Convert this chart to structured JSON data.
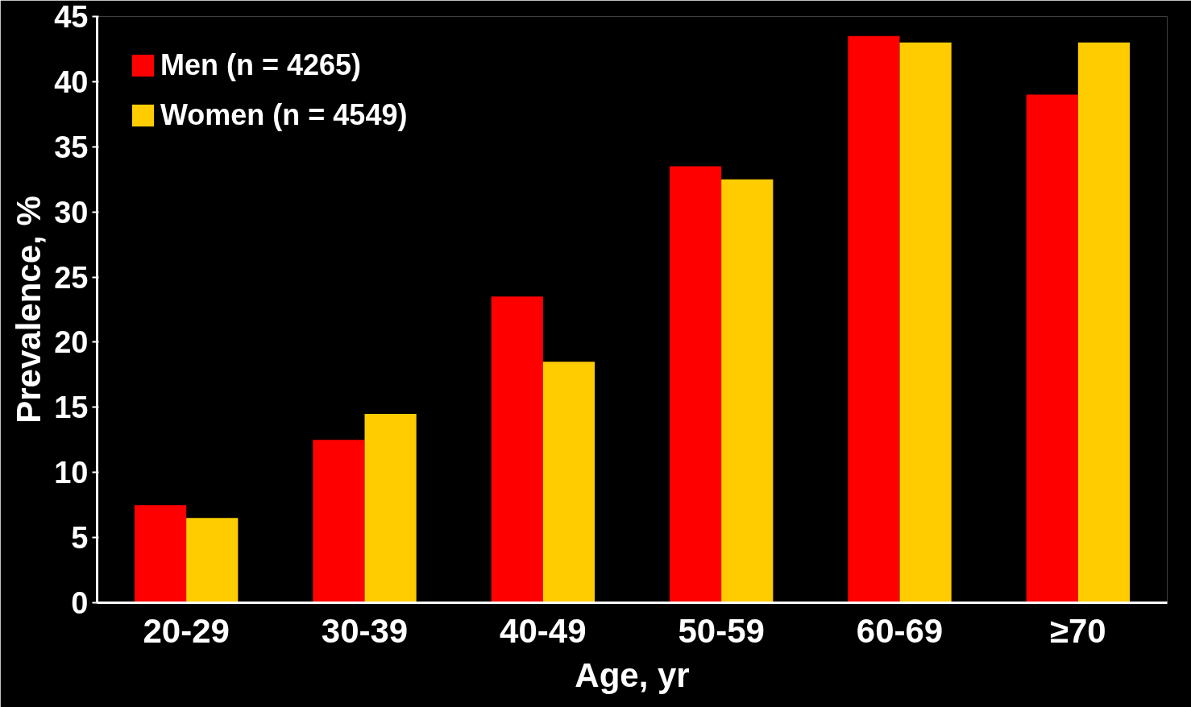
{
  "chart_data": {
    "type": "bar",
    "xlabel": "Age, yr",
    "ylabel": "Prevalence, %",
    "categories": [
      "20-29",
      "30-39",
      "40-49",
      "50-59",
      "60-69",
      "≥70"
    ],
    "series": [
      {
        "name": "Men (n = 4265)",
        "color": "#ff0000",
        "values": [
          7.5,
          12.5,
          23.5,
          33.5,
          43.5,
          39
        ]
      },
      {
        "name": "Women (n = 4549)",
        "color": "#ffcc00",
        "values": [
          6.5,
          14.5,
          18.5,
          32.5,
          43,
          43
        ]
      }
    ],
    "ylim": [
      0,
      45
    ],
    "yticks": [
      0,
      5,
      10,
      15,
      20,
      25,
      30,
      35,
      40,
      45
    ],
    "grid": false,
    "legend": "top left"
  }
}
